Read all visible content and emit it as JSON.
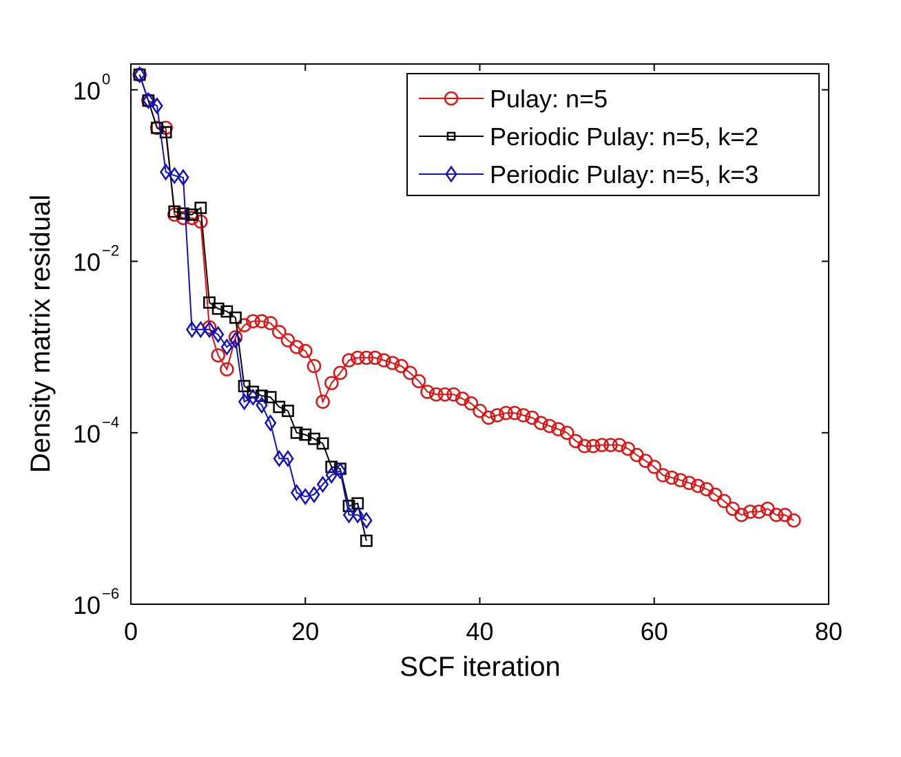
{
  "chart_data": {
    "type": "line",
    "title": "",
    "xlabel": "SCF iteration",
    "ylabel": "Density matrix residual",
    "xlim": [
      0,
      80
    ],
    "ylim": [
      1e-06,
      2
    ],
    "yscale": "log",
    "grid": false,
    "legend_position": "top-right",
    "xticks": [
      0,
      20,
      40,
      60,
      80
    ],
    "xtick_labels": [
      "0",
      "20",
      "40",
      "60",
      "80"
    ],
    "yticks": [
      1e-06,
      0.0001,
      0.01,
      1
    ],
    "ytick_labels": [
      {
        "base": "10",
        "exp": "−6"
      },
      {
        "base": "10",
        "exp": "−4"
      },
      {
        "base": "10",
        "exp": "−2"
      },
      {
        "base": "10",
        "exp": "0"
      }
    ],
    "series": [
      {
        "name": "Pulay: n=5",
        "color": "#e01010",
        "marker": "circle",
        "x": [
          1,
          2,
          3,
          4,
          5,
          6,
          7,
          8,
          9,
          10,
          11,
          12,
          13,
          14,
          15,
          16,
          17,
          18,
          19,
          20,
          21,
          22,
          23,
          24,
          25,
          26,
          27,
          28,
          29,
          30,
          31,
          32,
          33,
          34,
          35,
          36,
          37,
          38,
          39,
          40,
          41,
          42,
          43,
          44,
          45,
          46,
          47,
          48,
          49,
          50,
          51,
          52,
          53,
          54,
          55,
          56,
          57,
          58,
          59,
          60,
          61,
          62,
          63,
          64,
          65,
          66,
          67,
          68,
          69,
          70,
          71,
          72,
          73,
          74,
          75,
          76
        ],
        "y": [
          1.5,
          0.75,
          0.36,
          0.36,
          0.035,
          0.032,
          0.032,
          0.029,
          0.0017,
          0.0008,
          0.00055,
          0.0013,
          0.0018,
          0.002,
          0.002,
          0.0019,
          0.0015,
          0.0012,
          0.001,
          0.0009,
          0.0006,
          0.00023,
          0.00038,
          0.0005,
          0.0007,
          0.00075,
          0.00075,
          0.00075,
          0.0007,
          0.00065,
          0.0006,
          0.0005,
          0.0004,
          0.0003,
          0.00028,
          0.00028,
          0.00028,
          0.00025,
          0.00022,
          0.00018,
          0.00015,
          0.00016,
          0.00017,
          0.00017,
          0.00016,
          0.00015,
          0.00013,
          0.00012,
          0.00011,
          0.0001,
          8e-05,
          7e-05,
          7e-05,
          7.2e-05,
          7.2e-05,
          7.2e-05,
          6.5e-05,
          5.5e-05,
          4.7e-05,
          4e-05,
          3.2e-05,
          3e-05,
          2.8e-05,
          2.6e-05,
          2.4e-05,
          2.2e-05,
          1.9e-05,
          1.6e-05,
          1.3e-05,
          1.1e-05,
          1.2e-05,
          1.2e-05,
          1.3e-05,
          1.1e-05,
          1.1e-05,
          9.5e-06
        ]
      },
      {
        "name": "Periodic Pulay: n=5, k=2",
        "color": "#000000",
        "marker": "square",
        "x": [
          1,
          2,
          3,
          4,
          5,
          6,
          7,
          8,
          9,
          10,
          11,
          12,
          13,
          14,
          15,
          16,
          17,
          18,
          19,
          20,
          21,
          22,
          23,
          24,
          25,
          26,
          27
        ],
        "y": [
          1.5,
          0.75,
          0.36,
          0.32,
          0.038,
          0.036,
          0.035,
          0.042,
          0.0033,
          0.0028,
          0.0026,
          0.0022,
          0.00035,
          0.0003,
          0.00027,
          0.00026,
          0.0002,
          0.00018,
          0.0001,
          9.5e-05,
          8.5e-05,
          7.5e-05,
          4e-05,
          3.8e-05,
          1.4e-05,
          1.5e-05,
          5.5e-06
        ]
      },
      {
        "name": "Periodic Pulay: n=5, k=3",
        "color": "#1010c0",
        "marker": "diamond",
        "x": [
          1,
          2,
          3,
          4,
          5,
          6,
          7,
          8,
          9,
          10,
          11,
          12,
          13,
          14,
          15,
          16,
          17,
          18,
          19,
          20,
          21,
          22,
          23,
          24,
          25,
          26,
          27
        ],
        "y": [
          1.5,
          0.75,
          0.65,
          0.11,
          0.1,
          0.095,
          0.0016,
          0.0016,
          0.0016,
          0.0014,
          0.001,
          0.0012,
          0.00023,
          0.00026,
          0.00021,
          0.00013,
          5e-05,
          5e-05,
          2e-05,
          1.8e-05,
          1.9e-05,
          2.5e-05,
          3.2e-05,
          3.6e-05,
          1.1e-05,
          1.1e-05,
          9.5e-06
        ]
      }
    ]
  }
}
